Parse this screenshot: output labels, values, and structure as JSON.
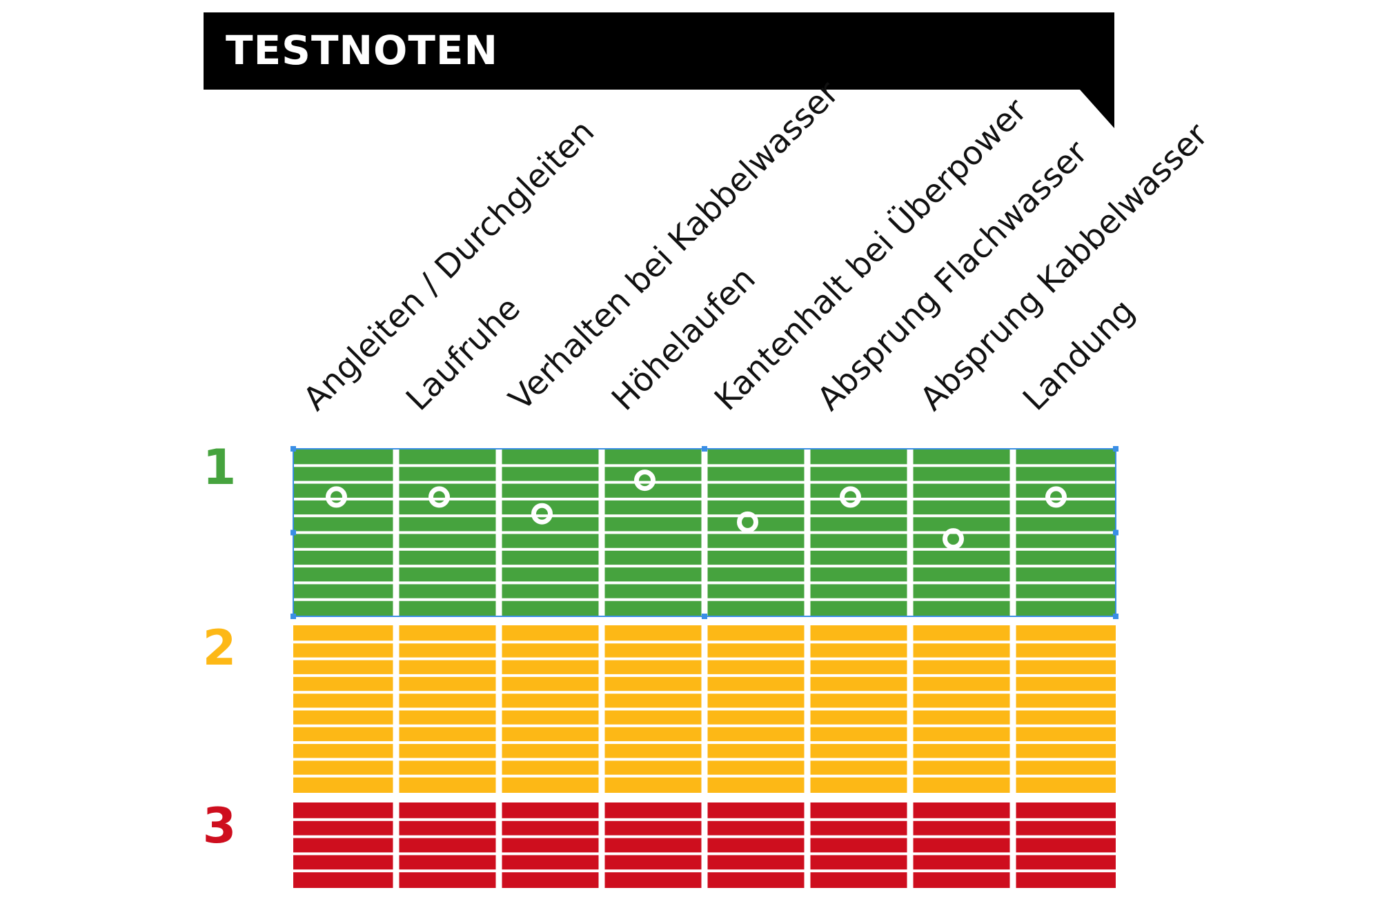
{
  "chart_data": {
    "type": "scatter",
    "title": "TESTNOTEN",
    "categories": [
      "Angleiten / Durchgleiten",
      "Laufruhe",
      "Verhalten bei Kabbelwasser",
      "Höhelaufen",
      "Kantenhalt bei Überpower",
      "Absprung Flachwasser",
      "Absprung Kabbelwasser",
      "Landung"
    ],
    "values": [
      1.3,
      1.3,
      1.4,
      1.2,
      1.45,
      1.3,
      1.55,
      1.3
    ],
    "grades": [
      {
        "label": "1",
        "color": "#46a33e"
      },
      {
        "label": "2",
        "color": "#fdb816"
      },
      {
        "label": "3",
        "color": "#ce0e1e"
      }
    ],
    "y_direction": "best grade at top",
    "ylim": [
      1,
      3.5
    ]
  }
}
